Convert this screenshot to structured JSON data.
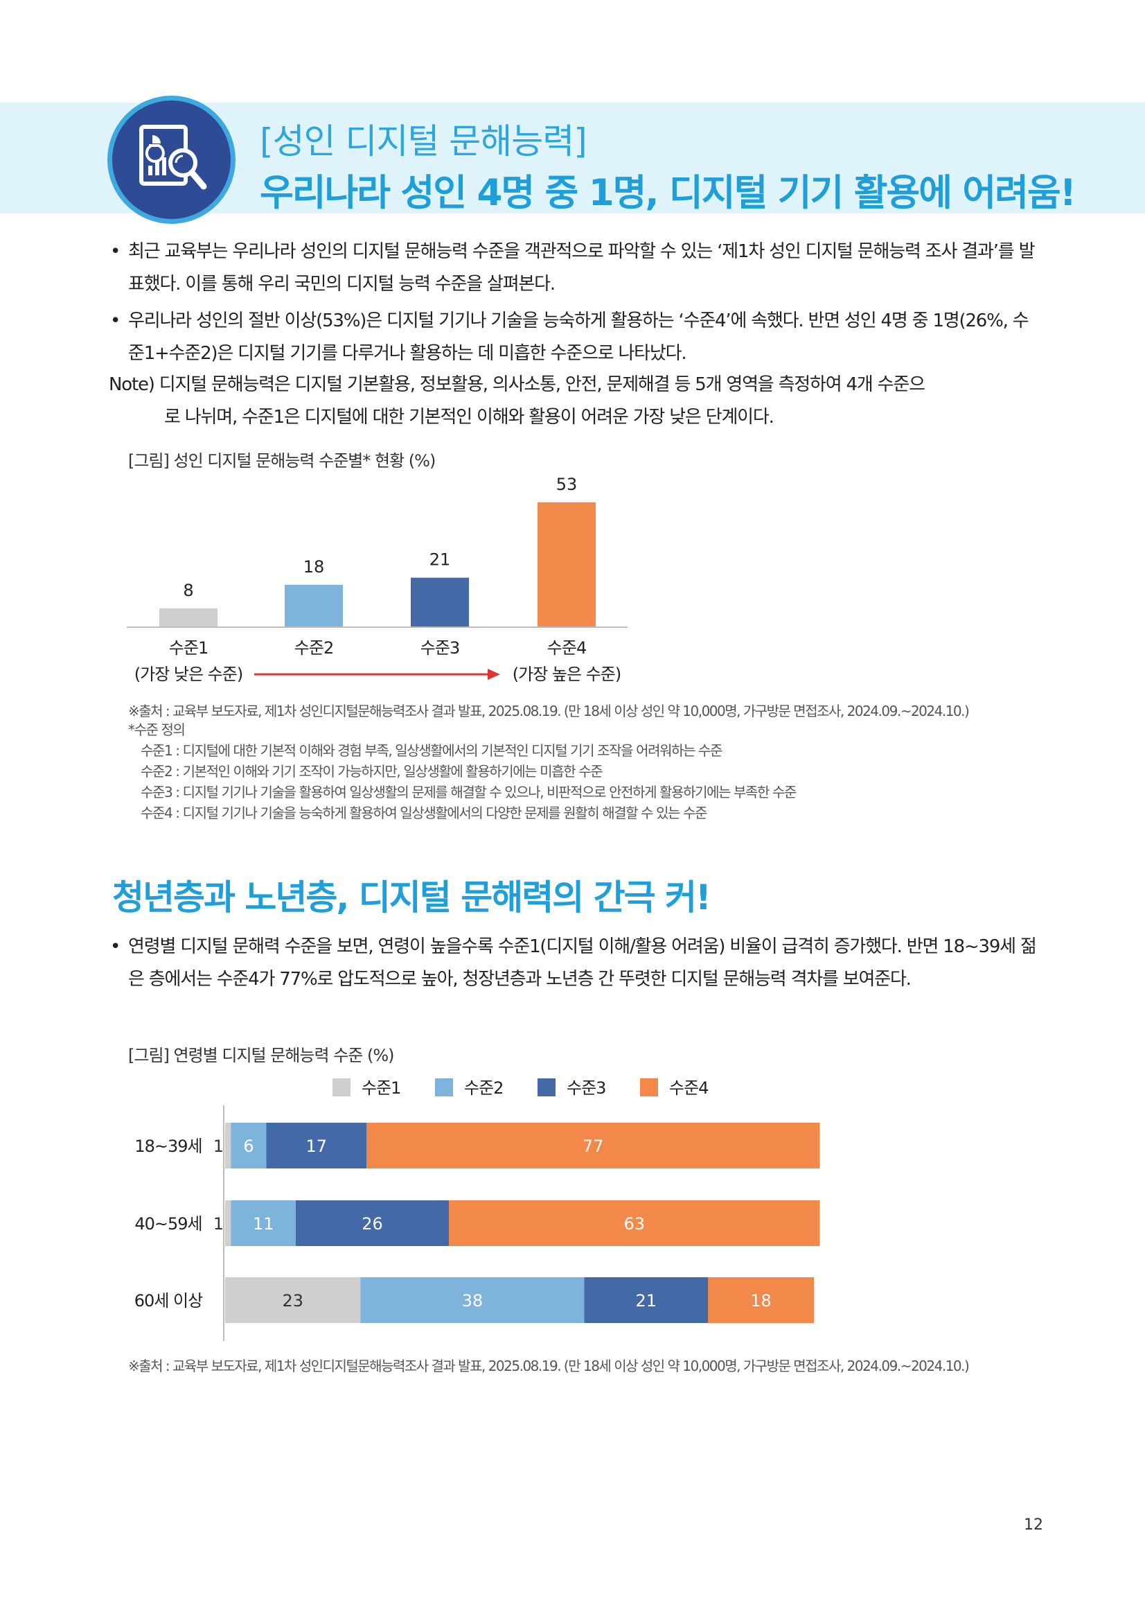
{
  "header": {
    "title_line1": "[성인 디지털 문해능력]",
    "title_line2": "우리나라 성인 4명 중 1명, 디지털 기기 활용에 어려움!",
    "icon": "report-magnifier-icon"
  },
  "intro": {
    "bullets": [
      "최근 교육부는 우리나라 성인의 디지털 문해능력 수준을 객관적으로 파악할 수 있는 ‘제1차 성인 디지털 문해능력 조사 결과’를 발표했다. 이를 통해 우리 국민의 디지털 능력 수준을 살펴본다.",
      "우리나라 성인의 절반 이상(53%)은 디지털 기기나 기술을 능숙하게 활용하는 ‘수준4’에 속했다. 반면 성인 4명 중 1명(26%, 수준1+수준2)은 디지털 기기를 다루거나 활용하는 데 미흡한 수준으로 나타났다."
    ],
    "note_label": "Note)",
    "note_text": "디지털 문해능력은 디지털 기본활용, 정보활용, 의사소통, 안전, 문제해결 등 5개 영역을 측정하여 4개 수준으",
    "note_text2": "로 나뉘며, 수준1은 디지털에 대한 기본적인 이해와 활용이 어려운 가장 낮은 단계이다."
  },
  "chart1_caption": "[그림] 성인 디지털 문해능력 수준별* 현황 (%)",
  "chart1_left_note": "(가장 낮은 수준)",
  "chart1_right_note": "(가장 높은 수준)",
  "source1": "※출처 : 교육부 보도자료, 제1차 성인디지털문해능력조사 결과 발표, 2025.08.19. (만 18세 이상 성인 약 10,000명, 가구방문 면접조사, 2024.09.~2024.10.)",
  "definitions": {
    "title": "*수준 정의",
    "items": [
      "수준1 : 디지털에 대한 기본적 이해와 경험 부족, 일상생활에서의 기본적인 디지털 기기 조작을 어려워하는 수준",
      "수준2 : 기본적인 이해와 기기 조작이 가능하지만, 일상생활에 활용하기에는 미흡한 수준",
      "수준3 : 디지털 기기나 기술을 활용하여 일상생활의 문제를 해결할 수 있으나, 비판적으로 안전하게 활용하기에는 부족한 수준",
      "수준4 : 디지털 기기나 기술을 능숙하게 활용하여 일상생활에서의 다양한 문제를 원활히 해결할 수 있는 수준"
    ]
  },
  "section2": {
    "title": "청년층과 노년층, 디지털 문해력의 간극 커!",
    "bullet": "연령별 디지털 문해력 수준을 보면, 연령이 높을수록 수준1(디지털 이해/활용 어려움) 비율이 급격히 증가했다. 반면 18~39세 젊은 층에서는 수준4가 77%로 압도적으로 높아, 청장년층과 노년층 간 뚜렷한 디지털 문해능력 격차를 보여준다."
  },
  "chart2_caption": "[그림] 연령별 디지털 문해능력 수준 (%)",
  "source2": "※출처 : 교육부 보도자료, 제1차 성인디지털문해능력조사 결과 발표, 2025.08.19. (만 18세 이상 성인 약 10,000명, 가구방문 면접조사, 2024.09.~2024.10.)",
  "page_number": "12",
  "colors": {
    "level1": "#cfcfcf",
    "level2": "#7eb3db",
    "level3": "#4369a7",
    "level4": "#f28849",
    "arrow": "#e03535",
    "accent": "#1e9fd9"
  },
  "chart_data": [
    {
      "type": "bar",
      "categories": [
        "수준1",
        "수준2",
        "수준3",
        "수준4"
      ],
      "values": [
        8,
        18,
        21,
        53
      ],
      "title": "",
      "xlabel": "",
      "ylabel": "",
      "ylim": [
        0,
        60
      ],
      "grid": false
    },
    {
      "type": "bar",
      "orientation": "horizontal",
      "stacked": true,
      "categories": [
        "18~39세",
        "40~59세",
        "60세 이상"
      ],
      "series": [
        {
          "name": "수준1",
          "values": [
            1,
            1,
            23
          ]
        },
        {
          "name": "수준2",
          "values": [
            6,
            11,
            38
          ]
        },
        {
          "name": "수준3",
          "values": [
            17,
            26,
            21
          ]
        },
        {
          "name": "수준4",
          "values": [
            77,
            63,
            18
          ]
        }
      ],
      "xlim": [
        0,
        101
      ],
      "legend": "top",
      "grid": false
    }
  ]
}
